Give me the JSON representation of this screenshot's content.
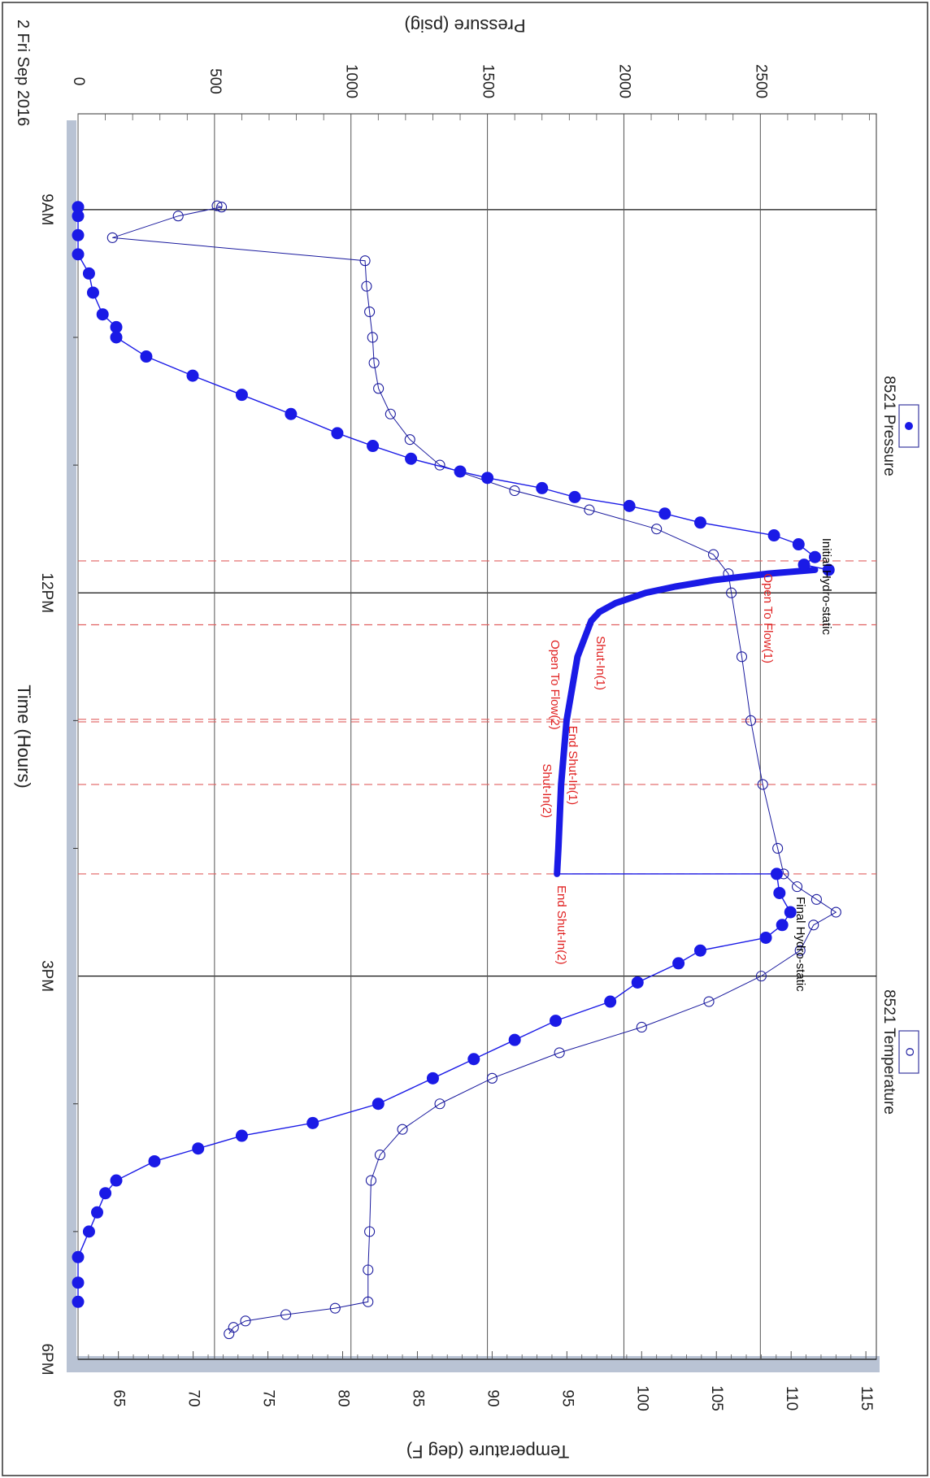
{
  "chart_data": {
    "type": "scatter",
    "title": "",
    "date_label": "2 Fri Sep 2016",
    "x": {
      "label": "Time (Hours)",
      "range_hours": [
        8.25,
        18.0
      ],
      "major_ticks": [
        9,
        12,
        15,
        18
      ],
      "tick_labels": [
        "9AM",
        "12PM",
        "3PM",
        "6PM"
      ],
      "minor_ticks": [
        10,
        11,
        13,
        14,
        16,
        17
      ]
    },
    "y_pressure": {
      "label": "Pressure (psig)",
      "range": [
        0,
        2925
      ],
      "ticks": [
        0,
        500,
        1000,
        1500,
        2000,
        2500
      ],
      "tick_labels": [
        "0",
        "500",
        "1000",
        "1500",
        "2000",
        "2500"
      ]
    },
    "y_temperature": {
      "label": "Temperature (deg F)",
      "range": [
        62.3,
        115.7
      ],
      "ticks": [
        65,
        70,
        75,
        80,
        85,
        90,
        95,
        100,
        105,
        110,
        115
      ],
      "tick_labels": [
        "65",
        "70",
        "75",
        "80",
        "85",
        "90",
        "95",
        "100",
        "105",
        "110",
        "115"
      ]
    },
    "grid": true,
    "legend": [
      {
        "name": "8521 Pressure",
        "marker": "●",
        "placement": "top"
      },
      {
        "name": "8521 Temperature",
        "marker": "O",
        "placement": "top-right"
      }
    ],
    "series": [
      {
        "name": "8521 Pressure",
        "marker": "filled-circle",
        "color": "#1a1ae6",
        "points": [
          [
            8.98,
            0
          ],
          [
            9.05,
            0
          ],
          [
            9.2,
            0
          ],
          [
            9.35,
            0
          ],
          [
            9.5,
            40
          ],
          [
            9.65,
            55
          ],
          [
            9.82,
            90
          ],
          [
            9.92,
            140
          ],
          [
            10.0,
            140
          ],
          [
            10.15,
            250
          ],
          [
            10.3,
            420
          ],
          [
            10.45,
            600
          ],
          [
            10.6,
            780
          ],
          [
            10.75,
            950
          ],
          [
            10.85,
            1080
          ],
          [
            10.95,
            1220
          ],
          [
            11.05,
            1400
          ],
          [
            11.1,
            1500
          ],
          [
            11.18,
            1700
          ],
          [
            11.25,
            1820
          ],
          [
            11.32,
            2020
          ],
          [
            11.38,
            2150
          ],
          [
            11.45,
            2280
          ],
          [
            11.55,
            2550
          ],
          [
            11.62,
            2640
          ],
          [
            11.72,
            2700
          ],
          [
            11.78,
            2660
          ],
          [
            11.82,
            2750
          ]
        ],
        "flow_curve": [
          [
            11.82,
            2700
          ],
          [
            11.85,
            2530
          ],
          [
            11.9,
            2330
          ],
          [
            11.95,
            2190
          ],
          [
            12.0,
            2080
          ],
          [
            12.08,
            1970
          ],
          [
            12.15,
            1910
          ],
          [
            12.22,
            1880
          ],
          [
            12.5,
            1830
          ],
          [
            13.0,
            1790
          ],
          [
            13.5,
            1770
          ],
          [
            14.0,
            1760
          ],
          [
            14.2,
            1755
          ]
        ],
        "recovery": [
          [
            14.2,
            2560
          ],
          [
            14.35,
            2570
          ],
          [
            14.5,
            2610
          ],
          [
            14.6,
            2580
          ],
          [
            14.7,
            2520
          ],
          [
            14.8,
            2280
          ],
          [
            14.9,
            2200
          ],
          [
            15.05,
            2050
          ],
          [
            15.2,
            1950
          ],
          [
            15.35,
            1750
          ],
          [
            15.5,
            1600
          ],
          [
            15.65,
            1450
          ],
          [
            15.8,
            1300
          ],
          [
            16.0,
            1100
          ],
          [
            16.15,
            860
          ],
          [
            16.25,
            600
          ],
          [
            16.35,
            440
          ],
          [
            16.45,
            280
          ],
          [
            16.6,
            140
          ],
          [
            16.7,
            100
          ],
          [
            16.85,
            70
          ],
          [
            17.0,
            40
          ],
          [
            17.2,
            0
          ],
          [
            17.4,
            0
          ],
          [
            17.55,
            0
          ]
        ]
      },
      {
        "name": "8521 Temperature",
        "marker": "open-circle",
        "color": "#1a1a9e",
        "points": [
          [
            8.97,
            71.6
          ],
          [
            8.98,
            71.9
          ],
          [
            9.05,
            69.0
          ],
          [
            9.22,
            64.6
          ],
          [
            9.4,
            81.5
          ],
          [
            9.6,
            81.6
          ],
          [
            9.8,
            81.8
          ],
          [
            10.0,
            82.0
          ],
          [
            10.2,
            82.1
          ],
          [
            10.4,
            82.4
          ],
          [
            10.6,
            83.2
          ],
          [
            10.8,
            84.5
          ],
          [
            11.0,
            86.5
          ],
          [
            11.2,
            91.5
          ],
          [
            11.35,
            96.5
          ],
          [
            11.5,
            101.0
          ],
          [
            11.7,
            104.8
          ],
          [
            11.85,
            105.8
          ],
          [
            12.0,
            106.0
          ],
          [
            12.5,
            106.7
          ],
          [
            13.0,
            107.3
          ],
          [
            13.5,
            108.1
          ],
          [
            14.0,
            109.1
          ],
          [
            14.2,
            109.5
          ],
          [
            14.3,
            110.4
          ],
          [
            14.4,
            111.7
          ],
          [
            14.5,
            113.0
          ],
          [
            14.6,
            111.5
          ],
          [
            14.8,
            110.6
          ],
          [
            15.0,
            108.0
          ],
          [
            15.2,
            104.5
          ],
          [
            15.4,
            100.0
          ],
          [
            15.6,
            94.5
          ],
          [
            15.8,
            90.0
          ],
          [
            16.0,
            86.5
          ],
          [
            16.2,
            84.0
          ],
          [
            16.4,
            82.5
          ],
          [
            16.6,
            81.9
          ],
          [
            17.0,
            81.8
          ],
          [
            17.3,
            81.7
          ],
          [
            17.55,
            81.7
          ],
          [
            17.6,
            79.5
          ],
          [
            17.65,
            76.2
          ],
          [
            17.7,
            73.5
          ],
          [
            17.75,
            72.7
          ],
          [
            17.8,
            72.4
          ]
        ]
      }
    ],
    "events": [
      {
        "label": "Initial Hydro-static",
        "time": 11.7,
        "color": "#000000"
      },
      {
        "label": "Open To Flow(1)",
        "time": 11.75,
        "color": "#e02020"
      },
      {
        "label": "Shut-In(1)",
        "time": 12.25,
        "color": "#e02020"
      },
      {
        "label": "Open To Flow(2)",
        "time": 12.25,
        "color": "#e02020"
      },
      {
        "label": "End Shut-In(1)",
        "time": 13.0,
        "color": "#e02020"
      },
      {
        "label": "Shut-In(2)",
        "time": 13.5,
        "color": "#e02020"
      },
      {
        "label": "End Shut-In(2)",
        "time": 14.2,
        "color": "#e02020"
      },
      {
        "label": "Final Hydro-static",
        "time": 14.3,
        "color": "#000000"
      }
    ],
    "event_lines_hours": [
      11.75,
      12.25,
      12.99,
      13.01,
      13.5,
      14.2
    ]
  }
}
